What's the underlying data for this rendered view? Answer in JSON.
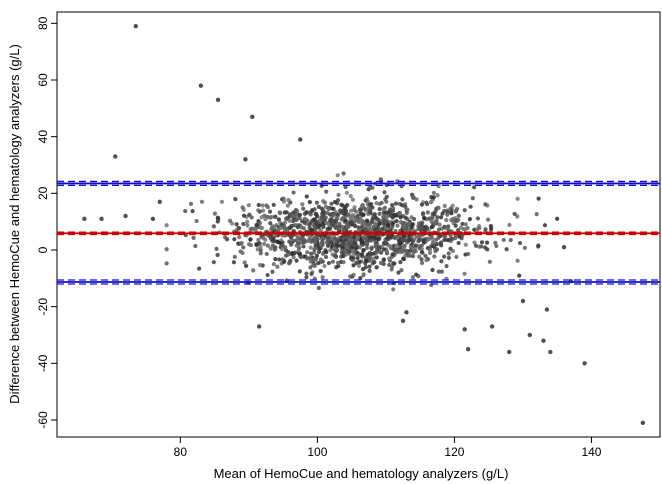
{
  "chart_data": {
    "type": "scatter",
    "title": "",
    "xlabel": "Mean of HemoCue and hematology analyzers (g/L)",
    "ylabel": "Difference between HemoCue and hematology analyzers (g/L)",
    "xlim": [
      62,
      150
    ],
    "ylim": [
      -66,
      84
    ],
    "x_ticks": [
      80,
      100,
      120,
      140
    ],
    "y_ticks": [
      -60,
      -40,
      -20,
      0,
      20,
      40,
      60,
      80
    ],
    "grid": false,
    "legend": "none",
    "reference_lines": [
      {
        "kind": "upper-limit-of-agreement",
        "value": 23.5,
        "ci": [
          22.8,
          24.2
        ],
        "color": "#1010cc"
      },
      {
        "kind": "mean-difference",
        "value": 5.9,
        "ci": [
          5.5,
          6.3
        ],
        "color": "#cc0000"
      },
      {
        "kind": "lower-limit-of-agreement",
        "value": -11.3,
        "ci": [
          -12.0,
          -10.6
        ],
        "color": "#1010cc"
      }
    ],
    "point_color": "#505050",
    "outliers": [
      {
        "x": 73.5,
        "y": 79
      },
      {
        "x": 83,
        "y": 58
      },
      {
        "x": 85.5,
        "y": 53
      },
      {
        "x": 90.5,
        "y": 47
      },
      {
        "x": 97.5,
        "y": 39
      },
      {
        "x": 70.5,
        "y": 33
      },
      {
        "x": 89.5,
        "y": 32
      },
      {
        "x": 66,
        "y": 11
      },
      {
        "x": 68.5,
        "y": 11
      },
      {
        "x": 72,
        "y": 12
      },
      {
        "x": 76,
        "y": 11
      },
      {
        "x": 77,
        "y": 17
      },
      {
        "x": 91.5,
        "y": -27
      },
      {
        "x": 112.5,
        "y": -25
      },
      {
        "x": 113,
        "y": -22
      },
      {
        "x": 121.5,
        "y": -28
      },
      {
        "x": 122,
        "y": -35
      },
      {
        "x": 125.5,
        "y": -27
      },
      {
        "x": 128,
        "y": -36
      },
      {
        "x": 131,
        "y": -30
      },
      {
        "x": 133,
        "y": -32
      },
      {
        "x": 134,
        "y": -36
      },
      {
        "x": 139,
        "y": -40
      },
      {
        "x": 147.5,
        "y": -61
      },
      {
        "x": 133.5,
        "y": -21
      },
      {
        "x": 130,
        "y": -18
      },
      {
        "x": 136,
        "y": 1
      },
      {
        "x": 137,
        "y": -11
      }
    ],
    "cloud": {
      "n": 1400,
      "x_mean": 106,
      "x_sd": 9,
      "x_range": [
        78,
        136
      ],
      "y_mean": 6,
      "y_sd": 6.5,
      "y_range": [
        -17,
        27
      ]
    }
  }
}
